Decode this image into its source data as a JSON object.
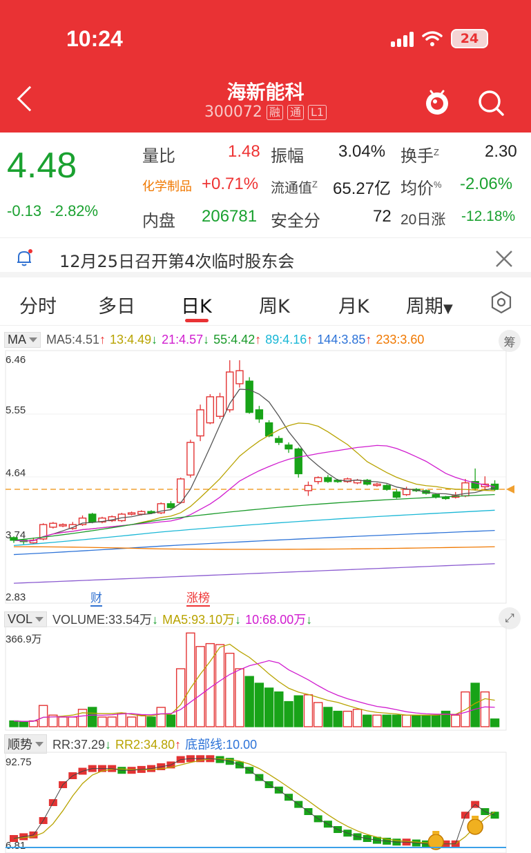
{
  "status": {
    "time": "10:24",
    "battery": "24"
  },
  "header": {
    "title": "海新能科",
    "code": "300072",
    "tags": [
      "融",
      "通",
      "L1"
    ]
  },
  "quote": {
    "price": "4.48",
    "change": "-0.13",
    "change_pct": "-2.82%",
    "rows": [
      [
        {
          "label": "量比",
          "value": "1.48",
          "color": "red"
        },
        {
          "label": "振幅",
          "value": "3.04%",
          "color": "dark"
        },
        {
          "label": "换手",
          "sup": "Z",
          "value": "2.30",
          "color": "dark"
        }
      ],
      [
        {
          "label": "化学制品",
          "value": "+0.71%",
          "color": "red",
          "label_color": "orange"
        },
        {
          "label": "流通值",
          "sup": "Z",
          "value": "65.27亿",
          "color": "dark"
        },
        {
          "label": "均价",
          "sup": "%",
          "value": "-2.06%",
          "color": "green"
        }
      ],
      [
        {
          "label": "内盘",
          "value": "206781",
          "color": "green"
        },
        {
          "label": "安全分",
          "value": "72",
          "color": "dark"
        },
        {
          "label": "20日涨",
          "value": "-12.18%",
          "color": "green"
        }
      ]
    ]
  },
  "notice": {
    "text": "12月25日召开第4次临时股东会"
  },
  "tabs": [
    "分时",
    "多日",
    "日K",
    "周K",
    "月K",
    "周期"
  ],
  "active_tab": "日K",
  "ma_legend": {
    "selector": "MA",
    "items": [
      {
        "text": "MA5:4.51",
        "arrow": "↑",
        "color": "#555555"
      },
      {
        "text": "13:4.49",
        "arrow": "↓",
        "color": "#b8a300"
      },
      {
        "text": "21:4.57",
        "arrow": "↓",
        "color": "#d01ccf"
      },
      {
        "text": "55:4.42",
        "arrow": "↑",
        "color": "#1a9a2a"
      },
      {
        "text": "89:4.16",
        "arrow": "↑",
        "color": "#19b7d6"
      },
      {
        "text": "144:3.85",
        "arrow": "↑",
        "color": "#2d73d8"
      },
      {
        "text": "233:3.60",
        "arrow": "",
        "color": "#f07800"
      }
    ],
    "chip": "筹"
  },
  "price_axis": [
    "6.46",
    "5.55",
    "4.64",
    "3.74",
    "2.83"
  ],
  "events": {
    "cai": "财",
    "zhangbang": "涨榜"
  },
  "vol_legend": {
    "selector": "VOL",
    "items": [
      {
        "text": "VOLUME:33.54万",
        "arrow": "↓",
        "color": "#444444"
      },
      {
        "text": "MA5:93.10万",
        "arrow": "↓",
        "color": "#b8a300"
      },
      {
        "text": "10:68.00万",
        "arrow": "↓",
        "color": "#d01ccf"
      }
    ],
    "max": "366.9万"
  },
  "trend_legend": {
    "selector": "顺势",
    "items": [
      {
        "text": "RR:37.29",
        "arrow": "↓",
        "color": "#444444"
      },
      {
        "text": "RR2:34.80",
        "arrow": "↑",
        "color": "#b8a300"
      },
      {
        "text": "底部线:10.00",
        "arrow": "",
        "color": "#2d73d8"
      }
    ],
    "max": "92.75",
    "min": "6.81"
  },
  "colors": {
    "up": "#e33333",
    "down": "#18a318",
    "brand": "#e93234"
  }
}
